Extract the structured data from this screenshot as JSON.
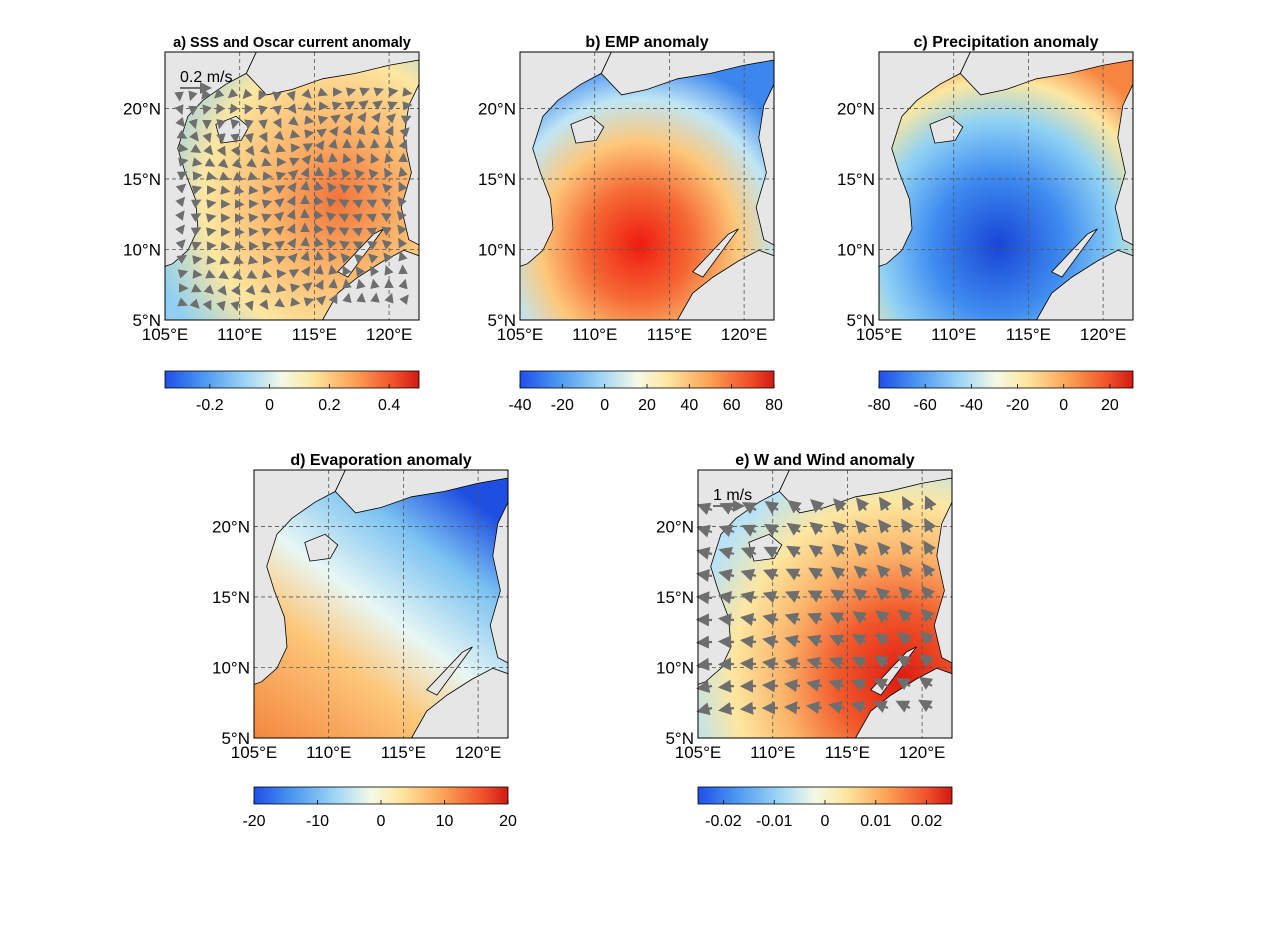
{
  "chart_data": [
    {
      "type": "heatmap",
      "panel": "a",
      "title": "a) SSS and Oscar current anomaly",
      "xticklabels": [
        "105°E",
        "110°E",
        "115°E",
        "120°E"
      ],
      "yticklabels": [
        "5°N",
        "10°N",
        "15°N",
        "20°N"
      ],
      "xlim": [
        105,
        122
      ],
      "ylim": [
        5,
        24
      ],
      "vector_scale_label": "0.2 m/s",
      "colorbar": {
        "ticks": [
          -0.2,
          0,
          0.2,
          0.4
        ],
        "ticklabels": [
          "-0.2",
          "0",
          "0.2",
          "0.4"
        ],
        "range": [
          -0.35,
          0.5
        ]
      },
      "colormap": "blue-white-red"
    },
    {
      "type": "heatmap",
      "panel": "b",
      "title": "b) EMP anomaly",
      "xticklabels": [
        "105°E",
        "110°E",
        "115°E",
        "120°E"
      ],
      "yticklabels": [
        "5°N",
        "10°N",
        "15°N",
        "20°N"
      ],
      "xlim": [
        105,
        122
      ],
      "ylim": [
        5,
        24
      ],
      "colorbar": {
        "ticks": [
          -40,
          -20,
          0,
          20,
          40,
          60,
          80
        ],
        "ticklabels": [
          "-40",
          "-20",
          "0",
          "20",
          "40",
          "60",
          "80"
        ],
        "range": [
          -40,
          80
        ]
      },
      "colormap": "blue-white-red"
    },
    {
      "type": "heatmap",
      "panel": "c",
      "title": "c) Precipitation anomaly",
      "xticklabels": [
        "105°E",
        "110°E",
        "115°E",
        "120°E"
      ],
      "yticklabels": [
        "5°N",
        "10°N",
        "15°N",
        "20°N"
      ],
      "xlim": [
        105,
        122
      ],
      "ylim": [
        5,
        24
      ],
      "colorbar": {
        "ticks": [
          -80,
          -60,
          -40,
          -20,
          0,
          20
        ],
        "ticklabels": [
          "-80",
          "-60",
          "-40",
          "-20",
          "0",
          "20"
        ],
        "range": [
          -80,
          30
        ]
      },
      "colormap": "blue-white-red"
    },
    {
      "type": "heatmap",
      "panel": "d",
      "title": "d) Evaporation anomaly",
      "xticklabels": [
        "105°E",
        "110°E",
        "115°E",
        "120°E"
      ],
      "yticklabels": [
        "5°N",
        "10°N",
        "15°N",
        "20°N"
      ],
      "xlim": [
        105,
        122
      ],
      "ylim": [
        5,
        24
      ],
      "colorbar": {
        "ticks": [
          -20,
          -10,
          0,
          10,
          20
        ],
        "ticklabels": [
          "-20",
          "-10",
          "0",
          "10",
          "20"
        ],
        "range": [
          -20,
          20
        ]
      },
      "colormap": "blue-white-red"
    },
    {
      "type": "heatmap",
      "panel": "e",
      "title": "e) W and Wind anomaly",
      "xticklabels": [
        "105°E",
        "110°E",
        "115°E",
        "120°E"
      ],
      "yticklabels": [
        "5°N",
        "10°N",
        "15°N",
        "20°N"
      ],
      "xlim": [
        105,
        122
      ],
      "ylim": [
        5,
        24
      ],
      "vector_scale_label": "1 m/s",
      "colorbar": {
        "ticks": [
          -0.02,
          -0.01,
          0,
          0.01,
          0.02
        ],
        "ticklabels": [
          "-0.02",
          "-0.01",
          "0",
          "0.01",
          "0.02"
        ],
        "range": [
          -0.025,
          0.025
        ]
      },
      "colormap": "blue-white-red"
    }
  ],
  "colors": {
    "land": "#e6e6e6",
    "frame": "#000000",
    "grid": "#555555",
    "vector": "#6e6e6e",
    "colormap_stops": [
      "#1f4fe8",
      "#4b97f0",
      "#9fd6f5",
      "#f4f9e6",
      "#fde7a0",
      "#fba457",
      "#f0522a",
      "#d11a14"
    ]
  }
}
